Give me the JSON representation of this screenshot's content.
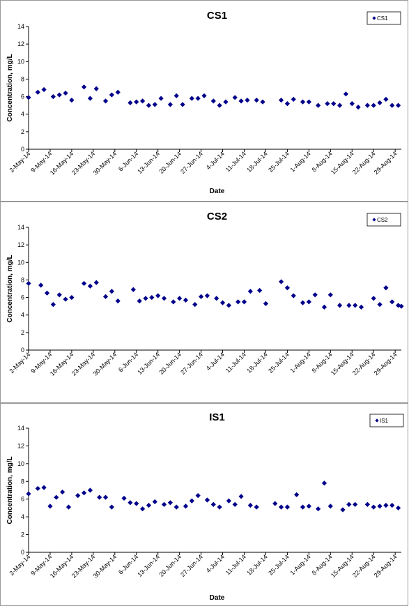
{
  "chart_data": [
    {
      "type": "scatter",
      "title": "CS1",
      "xlabel": "Date",
      "ylabel": "Concentration, mg/L",
      "ylim": [
        0,
        14
      ],
      "yticks": [
        0,
        2,
        4,
        6,
        8,
        10,
        12,
        14
      ],
      "xlim": [
        "2014-05-02",
        "2014-08-31"
      ],
      "xtick_labels": [
        "2-May-14",
        "9-May-14",
        "16-May-14",
        "23-May-14",
        "30-May-14",
        "6-Jun-14",
        "13-Jun-14",
        "20-Jun-14",
        "27-Jun-14",
        "4-Jul-14",
        "11-Jul-14",
        "18-Jul-14",
        "25-Jul-14",
        "1-Aug-14",
        "8-Aug-14",
        "15-Aug-14",
        "22-Aug-14",
        "29-Aug-14"
      ],
      "legend": "top-right",
      "grid": false,
      "marker_color": "#00008b",
      "series": [
        {
          "name": "CS1",
          "x": [
            "2014-05-02",
            "2014-05-05",
            "2014-05-07",
            "2014-05-10",
            "2014-05-12",
            "2014-05-14",
            "2014-05-16",
            "2014-05-20",
            "2014-05-22",
            "2014-05-24",
            "2014-05-27",
            "2014-05-29",
            "2014-05-31",
            "2014-06-04",
            "2014-06-06",
            "2014-06-08",
            "2014-06-10",
            "2014-06-12",
            "2014-06-14",
            "2014-06-17",
            "2014-06-19",
            "2014-06-21",
            "2014-06-24",
            "2014-06-26",
            "2014-06-28",
            "2014-07-01",
            "2014-07-03",
            "2014-07-05",
            "2014-07-08",
            "2014-07-10",
            "2014-07-12",
            "2014-07-15",
            "2014-07-17",
            "2014-07-23",
            "2014-07-25",
            "2014-07-27",
            "2014-07-30",
            "2014-08-01",
            "2014-08-04",
            "2014-08-07",
            "2014-08-09",
            "2014-08-11",
            "2014-08-13",
            "2014-08-15",
            "2014-08-17",
            "2014-08-20",
            "2014-08-22",
            "2014-08-24",
            "2014-08-26",
            "2014-08-28",
            "2014-08-30"
          ],
          "y": [
            5.9,
            6.5,
            6.8,
            6.0,
            6.2,
            6.4,
            5.6,
            7.1,
            5.8,
            6.9,
            5.5,
            6.2,
            6.5,
            5.3,
            5.4,
            5.5,
            5.0,
            5.1,
            5.8,
            5.1,
            6.1,
            5.1,
            5.8,
            5.8,
            6.1,
            5.5,
            5.0,
            5.4,
            5.9,
            5.5,
            5.6,
            5.6,
            5.4,
            5.6,
            5.2,
            5.7,
            5.4,
            5.4,
            5.0,
            5.2,
            5.2,
            5.0,
            6.3,
            5.2,
            4.8,
            5.0,
            5.0,
            5.3,
            5.7,
            5.0,
            5.0
          ]
        }
      ]
    },
    {
      "type": "scatter",
      "title": "CS2",
      "xlabel": "",
      "ylabel": "Concentration, mg/L",
      "ylim": [
        0,
        14
      ],
      "yticks": [
        0,
        2,
        4,
        6,
        8,
        10,
        12,
        14
      ],
      "xlim": [
        "2014-05-02",
        "2014-08-31"
      ],
      "xtick_labels": [
        "2-May-14",
        "9-May-14",
        "16-May-14",
        "23-May-14",
        "30-May-14",
        "6-Jun-14",
        "13-Jun-14",
        "20-Jun-14",
        "27-Jun-14",
        "4-Jul-14",
        "11-Jul-14",
        "18-Jul-14",
        "25-Jul-14",
        "1-Aug-14",
        "8-Aug-14",
        "15-Aug-14",
        "22-Aug-14",
        "29-Aug-14"
      ],
      "legend": "top-right",
      "grid": false,
      "marker_color": "#00008b",
      "series": [
        {
          "name": "CS2",
          "x": [
            "2014-05-02",
            "2014-05-06",
            "2014-05-08",
            "2014-05-10",
            "2014-05-12",
            "2014-05-14",
            "2014-05-16",
            "2014-05-20",
            "2014-05-22",
            "2014-05-24",
            "2014-05-27",
            "2014-05-29",
            "2014-05-31",
            "2014-06-05",
            "2014-06-07",
            "2014-06-09",
            "2014-06-11",
            "2014-06-13",
            "2014-06-15",
            "2014-06-18",
            "2014-06-20",
            "2014-06-22",
            "2014-06-25",
            "2014-06-27",
            "2014-06-29",
            "2014-07-02",
            "2014-07-04",
            "2014-07-06",
            "2014-07-09",
            "2014-07-11",
            "2014-07-13",
            "2014-07-16",
            "2014-07-18",
            "2014-07-23",
            "2014-07-25",
            "2014-07-27",
            "2014-07-30",
            "2014-08-01",
            "2014-08-03",
            "2014-08-06",
            "2014-08-08",
            "2014-08-11",
            "2014-08-14",
            "2014-08-16",
            "2014-08-18",
            "2014-08-22",
            "2014-08-24",
            "2014-08-26",
            "2014-08-28",
            "2014-08-30",
            "2014-08-31"
          ],
          "y": [
            7.6,
            7.4,
            6.5,
            5.2,
            6.3,
            5.8,
            6.0,
            7.6,
            7.3,
            7.7,
            6.1,
            6.7,
            5.6,
            6.9,
            5.6,
            5.9,
            6.0,
            6.2,
            5.9,
            5.5,
            5.9,
            5.7,
            5.2,
            6.1,
            6.2,
            5.9,
            5.4,
            5.1,
            5.5,
            5.5,
            6.7,
            6.8,
            5.3,
            7.8,
            7.1,
            6.2,
            5.4,
            5.5,
            6.3,
            4.9,
            6.3,
            5.1,
            5.1,
            5.1,
            4.9,
            5.9,
            5.2,
            7.1,
            5.5,
            5.1,
            5.0
          ]
        }
      ]
    },
    {
      "type": "scatter",
      "title": "IS1",
      "xlabel": "Date",
      "ylabel": "Concentration, mg/L",
      "ylim": [
        0,
        14
      ],
      "yticks": [
        0,
        2,
        4,
        6,
        8,
        10,
        12,
        14
      ],
      "xlim": [
        "2014-05-02",
        "2014-08-31"
      ],
      "xtick_labels": [
        "2-May-14",
        "9-May-14",
        "16-May-14",
        "23-May-14",
        "30-May-14",
        "6-Jun-14",
        "13-Jun-14",
        "20-Jun-14",
        "27-Jun-14",
        "4-Jul-14",
        "11-Jul-14",
        "18-Jul-14",
        "25-Jul-14",
        "1-Aug-14",
        "8-Aug-14",
        "15-Aug-14",
        "22-Aug-14",
        "29-Aug-14"
      ],
      "legend": "top-right",
      "grid": false,
      "marker_color": "#00008b",
      "series": [
        {
          "name": "IS1",
          "x": [
            "2014-05-02",
            "2014-05-05",
            "2014-05-07",
            "2014-05-09",
            "2014-05-11",
            "2014-05-13",
            "2014-05-15",
            "2014-05-18",
            "2014-05-20",
            "2014-05-22",
            "2014-05-25",
            "2014-05-27",
            "2014-05-29",
            "2014-06-02",
            "2014-06-04",
            "2014-06-06",
            "2014-06-08",
            "2014-06-10",
            "2014-06-12",
            "2014-06-15",
            "2014-06-17",
            "2014-06-19",
            "2014-06-22",
            "2014-06-24",
            "2014-06-26",
            "2014-06-29",
            "2014-07-01",
            "2014-07-03",
            "2014-07-06",
            "2014-07-08",
            "2014-07-10",
            "2014-07-13",
            "2014-07-15",
            "2014-07-21",
            "2014-07-23",
            "2014-07-25",
            "2014-07-28",
            "2014-07-30",
            "2014-08-01",
            "2014-08-04",
            "2014-08-06",
            "2014-08-08",
            "2014-08-12",
            "2014-08-14",
            "2014-08-16",
            "2014-08-20",
            "2014-08-22",
            "2014-08-24",
            "2014-08-26",
            "2014-08-28",
            "2014-08-30"
          ],
          "y": [
            6.6,
            7.2,
            7.3,
            5.2,
            6.2,
            6.8,
            5.1,
            6.4,
            6.7,
            7.0,
            6.2,
            6.2,
            5.1,
            6.1,
            5.6,
            5.5,
            4.9,
            5.3,
            5.7,
            5.4,
            5.6,
            5.1,
            5.2,
            5.8,
            6.4,
            5.9,
            5.4,
            5.1,
            5.8,
            5.4,
            6.3,
            5.3,
            5.1,
            5.5,
            5.1,
            5.1,
            6.5,
            5.1,
            5.2,
            4.9,
            7.8,
            5.2,
            4.8,
            5.4,
            5.4,
            5.4,
            5.1,
            5.2,
            5.3,
            5.3,
            5.0
          ]
        }
      ]
    }
  ]
}
